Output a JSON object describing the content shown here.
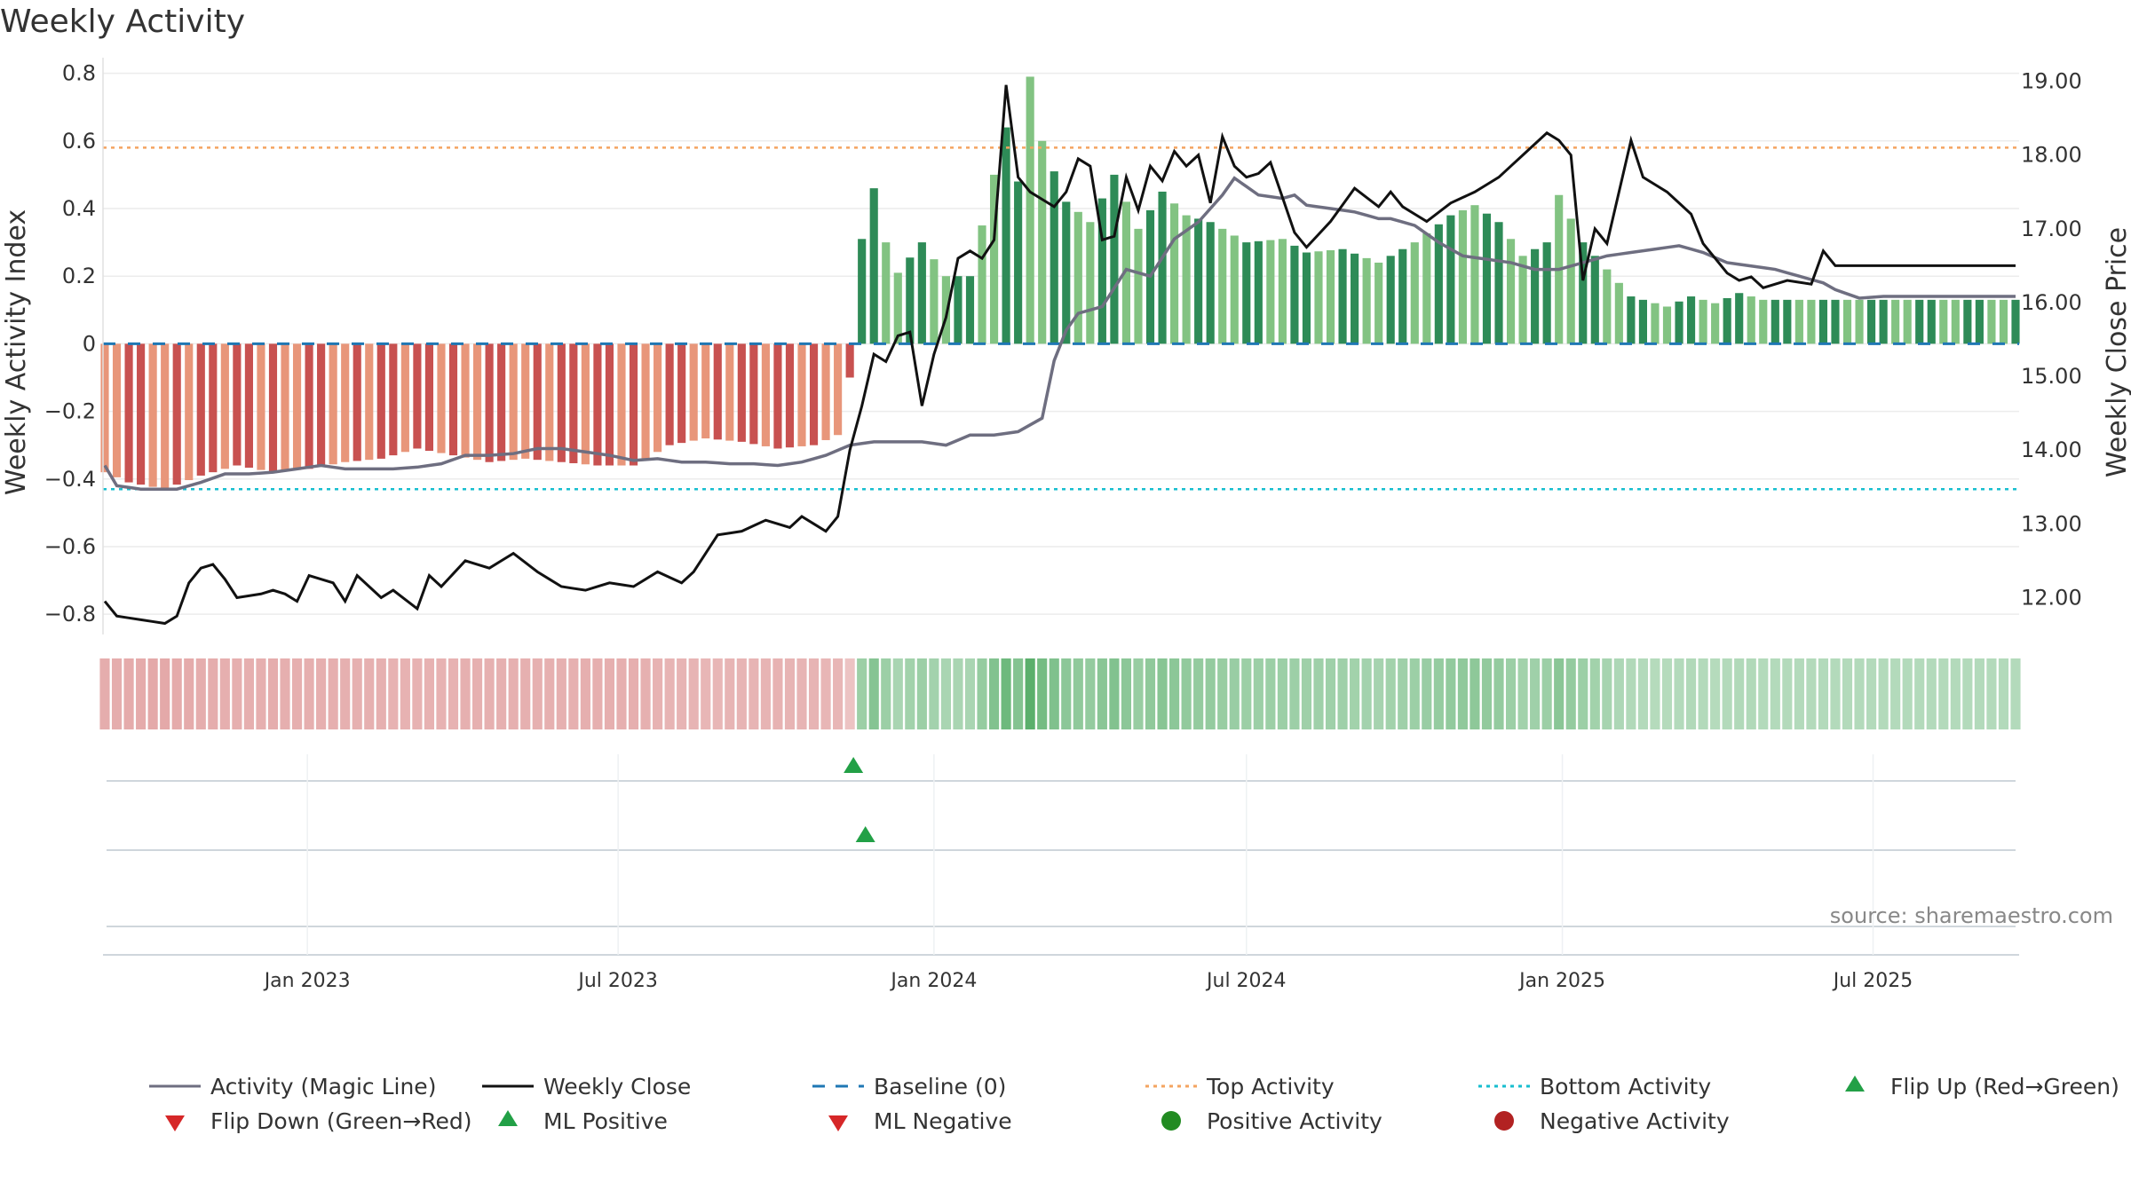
{
  "title": "Weekly Activity",
  "source_text": "source: sharemaestro.com",
  "colors": {
    "neg_dark": "#c85150",
    "neg_light": "#e8967a",
    "pos_dark": "#2e8b57",
    "pos_light": "#82c382",
    "magic_line": "#6e6e80",
    "close_line": "#111111",
    "baseline": "#1f77b4",
    "top_line": "#f4a460",
    "bottom_line": "#17becf",
    "marker_up": "#22a046",
    "marker_down": "#d62728",
    "positive_dot": "#228b22",
    "negative_dot": "#b22222"
  },
  "chart_data": {
    "type": "bar",
    "frequency": "weekly",
    "x_start": "2022-09-05",
    "x_end": "2025-09-22",
    "x_ticks": [
      "Jan 2023",
      "Jul 2023",
      "Jan 2024",
      "Jul 2024",
      "Jan 2025",
      "Jul 2025"
    ],
    "x_tick_dates": [
      "2023-01-01",
      "2023-07-01",
      "2024-01-01",
      "2024-07-01",
      "2025-01-01",
      "2025-07-01"
    ],
    "left_axis": {
      "label": "Weekly Activity Index",
      "range": [
        -0.86,
        0.82
      ],
      "ticks": [
        0.8,
        0.6,
        0.4,
        0.2,
        0,
        -0.2,
        -0.4,
        -0.6,
        -0.8
      ],
      "tick_labels": [
        "0.8",
        "0.6",
        "0.4",
        "0.2",
        "0",
        "−0.2",
        "−0.4",
        "−0.6",
        "−0.8"
      ]
    },
    "right_axis": {
      "label": "Weekly Close Price",
      "range": [
        11.5,
        19.2
      ],
      "ticks": [
        19,
        18,
        17,
        16,
        15,
        14,
        13,
        12
      ],
      "tick_labels": [
        "19.00",
        "18.00",
        "17.00",
        "16.00",
        "15.00",
        "14.00",
        "13.00",
        "12.00"
      ]
    },
    "top_activity": 0.58,
    "bottom_activity": -0.43,
    "baseline": 0,
    "activity_anchors": [
      [
        0,
        -0.38
      ],
      [
        2,
        -0.41
      ],
      [
        5,
        -0.43
      ],
      [
        8,
        -0.39
      ],
      [
        11,
        -0.36
      ],
      [
        14,
        -0.38
      ],
      [
        17,
        -0.37
      ],
      [
        20,
        -0.35
      ],
      [
        23,
        -0.34
      ],
      [
        26,
        -0.31
      ],
      [
        29,
        -0.33
      ],
      [
        32,
        -0.35
      ],
      [
        35,
        -0.34
      ],
      [
        38,
        -0.35
      ],
      [
        41,
        -0.36
      ],
      [
        44,
        -0.36
      ],
      [
        47,
        -0.3
      ],
      [
        50,
        -0.28
      ],
      [
        53,
        -0.29
      ],
      [
        56,
        -0.31
      ],
      [
        59,
        -0.3
      ],
      [
        61,
        -0.27
      ],
      [
        62,
        -0.1
      ],
      [
        63,
        0.31
      ],
      [
        64,
        0.46
      ],
      [
        65,
        0.3
      ],
      [
        66,
        0.21
      ],
      [
        68,
        0.3
      ],
      [
        70,
        0.2
      ],
      [
        72,
        0.2
      ],
      [
        74,
        0.5
      ],
      [
        75,
        0.64
      ],
      [
        76,
        0.48
      ],
      [
        77,
        0.79
      ],
      [
        78,
        0.6
      ],
      [
        80,
        0.42
      ],
      [
        82,
        0.36
      ],
      [
        84,
        0.5
      ],
      [
        86,
        0.34
      ],
      [
        88,
        0.45
      ],
      [
        90,
        0.38
      ],
      [
        92,
        0.36
      ],
      [
        95,
        0.3
      ],
      [
        98,
        0.31
      ],
      [
        100,
        0.27
      ],
      [
        103,
        0.28
      ],
      [
        106,
        0.24
      ],
      [
        109,
        0.3
      ],
      [
        112,
        0.38
      ],
      [
        114,
        0.41
      ],
      [
        116,
        0.36
      ],
      [
        118,
        0.26
      ],
      [
        120,
        0.3
      ],
      [
        121,
        0.44
      ],
      [
        123,
        0.3
      ],
      [
        125,
        0.22
      ],
      [
        127,
        0.14
      ],
      [
        130,
        0.11
      ],
      [
        132,
        0.14
      ],
      [
        134,
        0.12
      ],
      [
        136,
        0.15
      ],
      [
        138,
        0.13
      ]
    ],
    "close_anchors": [
      [
        0,
        11.95
      ],
      [
        1,
        11.75
      ],
      [
        3,
        11.7
      ],
      [
        5,
        11.65
      ],
      [
        6,
        11.75
      ],
      [
        7,
        12.2
      ],
      [
        8,
        12.4
      ],
      [
        9,
        12.45
      ],
      [
        10,
        12.25
      ],
      [
        11,
        12.0
      ],
      [
        13,
        12.05
      ],
      [
        14,
        12.1
      ],
      [
        15,
        12.05
      ],
      [
        16,
        11.95
      ],
      [
        17,
        12.3
      ],
      [
        19,
        12.2
      ],
      [
        20,
        11.95
      ],
      [
        21,
        12.3
      ],
      [
        23,
        12.0
      ],
      [
        24,
        12.1
      ],
      [
        26,
        11.85
      ],
      [
        27,
        12.3
      ],
      [
        28,
        12.15
      ],
      [
        30,
        12.5
      ],
      [
        32,
        12.4
      ],
      [
        34,
        12.6
      ],
      [
        36,
        12.35
      ],
      [
        38,
        12.15
      ],
      [
        40,
        12.1
      ],
      [
        42,
        12.2
      ],
      [
        44,
        12.15
      ],
      [
        46,
        12.35
      ],
      [
        48,
        12.2
      ],
      [
        49,
        12.35
      ],
      [
        51,
        12.85
      ],
      [
        53,
        12.9
      ],
      [
        55,
        13.05
      ],
      [
        57,
        12.95
      ],
      [
        58,
        13.1
      ],
      [
        60,
        12.9
      ],
      [
        61,
        13.1
      ],
      [
        62,
        14.0
      ],
      [
        63,
        14.6
      ],
      [
        64,
        15.3
      ],
      [
        65,
        15.2
      ],
      [
        66,
        15.55
      ],
      [
        67,
        15.6
      ],
      [
        68,
        14.6
      ],
      [
        69,
        15.3
      ],
      [
        70,
        15.8
      ],
      [
        71,
        16.6
      ],
      [
        72,
        16.7
      ],
      [
        73,
        16.6
      ],
      [
        74,
        16.85
      ],
      [
        75,
        18.95
      ],
      [
        76,
        17.7
      ],
      [
        77,
        17.5
      ],
      [
        79,
        17.3
      ],
      [
        80,
        17.5
      ],
      [
        81,
        17.95
      ],
      [
        82,
        17.85
      ],
      [
        83,
        16.85
      ],
      [
        84,
        16.9
      ],
      [
        85,
        17.7
      ],
      [
        86,
        17.25
      ],
      [
        87,
        17.85
      ],
      [
        88,
        17.65
      ],
      [
        89,
        18.05
      ],
      [
        90,
        17.85
      ],
      [
        91,
        18.0
      ],
      [
        92,
        17.35
      ],
      [
        93,
        18.25
      ],
      [
        94,
        17.85
      ],
      [
        95,
        17.7
      ],
      [
        96,
        17.75
      ],
      [
        97,
        17.9
      ],
      [
        99,
        16.95
      ],
      [
        100,
        16.75
      ],
      [
        102,
        17.1
      ],
      [
        104,
        17.55
      ],
      [
        106,
        17.3
      ],
      [
        107,
        17.5
      ],
      [
        108,
        17.3
      ],
      [
        110,
        17.1
      ],
      [
        112,
        17.35
      ],
      [
        114,
        17.5
      ],
      [
        116,
        17.7
      ],
      [
        118,
        18.0
      ],
      [
        120,
        18.3
      ],
      [
        121,
        18.2
      ],
      [
        122,
        18.0
      ],
      [
        123,
        16.3
      ],
      [
        124,
        17.0
      ],
      [
        125,
        16.8
      ],
      [
        126,
        17.5
      ],
      [
        127,
        18.2
      ],
      [
        128,
        17.7
      ],
      [
        130,
        17.5
      ],
      [
        132,
        17.2
      ],
      [
        133,
        16.8
      ],
      [
        135,
        16.4
      ],
      [
        136,
        16.3
      ],
      [
        137,
        16.35
      ],
      [
        138,
        16.2
      ],
      [
        140,
        16.3
      ],
      [
        142,
        16.25
      ],
      [
        143,
        16.7
      ],
      [
        144,
        16.5
      ]
    ],
    "magic_anchors": [
      [
        0,
        -0.36
      ],
      [
        1,
        -0.42
      ],
      [
        3,
        -0.43
      ],
      [
        6,
        -0.43
      ],
      [
        8,
        -0.41
      ],
      [
        10,
        -0.385
      ],
      [
        12,
        -0.385
      ],
      [
        14,
        -0.38
      ],
      [
        16,
        -0.37
      ],
      [
        18,
        -0.36
      ],
      [
        20,
        -0.37
      ],
      [
        22,
        -0.37
      ],
      [
        24,
        -0.37
      ],
      [
        26,
        -0.365
      ],
      [
        28,
        -0.355
      ],
      [
        30,
        -0.33
      ],
      [
        32,
        -0.33
      ],
      [
        34,
        -0.325
      ],
      [
        36,
        -0.31
      ],
      [
        38,
        -0.31
      ],
      [
        40,
        -0.32
      ],
      [
        42,
        -0.33
      ],
      [
        44,
        -0.345
      ],
      [
        46,
        -0.34
      ],
      [
        48,
        -0.35
      ],
      [
        50,
        -0.35
      ],
      [
        52,
        -0.355
      ],
      [
        54,
        -0.355
      ],
      [
        56,
        -0.36
      ],
      [
        58,
        -0.35
      ],
      [
        60,
        -0.33
      ],
      [
        62,
        -0.3
      ],
      [
        64,
        -0.29
      ],
      [
        66,
        -0.29
      ],
      [
        68,
        -0.29
      ],
      [
        70,
        -0.3
      ],
      [
        72,
        -0.27
      ],
      [
        74,
        -0.27
      ],
      [
        76,
        -0.26
      ],
      [
        78,
        -0.22
      ],
      [
        79,
        -0.05
      ],
      [
        80,
        0.04
      ],
      [
        81,
        0.09
      ],
      [
        83,
        0.11
      ],
      [
        85,
        0.22
      ],
      [
        87,
        0.2
      ],
      [
        89,
        0.31
      ],
      [
        91,
        0.36
      ],
      [
        93,
        0.44
      ],
      [
        94,
        0.49
      ],
      [
        96,
        0.44
      ],
      [
        98,
        0.43
      ],
      [
        99,
        0.44
      ],
      [
        100,
        0.41
      ],
      [
        102,
        0.4
      ],
      [
        104,
        0.39
      ],
      [
        106,
        0.37
      ],
      [
        107,
        0.37
      ],
      [
        109,
        0.35
      ],
      [
        111,
        0.3
      ],
      [
        113,
        0.26
      ],
      [
        115,
        0.25
      ],
      [
        117,
        0.24
      ],
      [
        119,
        0.22
      ],
      [
        121,
        0.22
      ],
      [
        123,
        0.24
      ],
      [
        125,
        0.26
      ],
      [
        127,
        0.27
      ],
      [
        129,
        0.28
      ],
      [
        131,
        0.29
      ],
      [
        133,
        0.27
      ],
      [
        135,
        0.24
      ],
      [
        137,
        0.23
      ],
      [
        139,
        0.22
      ],
      [
        141,
        0.2
      ],
      [
        143,
        0.18
      ],
      [
        144,
        0.16
      ],
      [
        146,
        0.135
      ],
      [
        148,
        0.14
      ]
    ],
    "markers": {
      "flip_up": [
        {
          "index": 62,
          "row": 1
        }
      ],
      "ml_positive": [
        {
          "index": 63,
          "row": 2
        }
      ],
      "flip_down": [],
      "ml_negative": [],
      "positive_activity": [],
      "negative_activity": []
    }
  },
  "legend": [
    {
      "label": "Activity (Magic Line)",
      "kind": "line-solid",
      "color": "#6e6e80"
    },
    {
      "label": "Weekly Close",
      "kind": "line-solid",
      "color": "#111111"
    },
    {
      "label": "Baseline (0)",
      "kind": "line-dashed",
      "color": "#1f77b4"
    },
    {
      "label": "Top Activity",
      "kind": "line-dotted",
      "color": "#f4a460"
    },
    {
      "label": "Bottom Activity",
      "kind": "line-dotted",
      "color": "#17becf"
    },
    {
      "label": "Flip Up (Red→Green)",
      "kind": "triangle-up",
      "color": "#22a046"
    },
    {
      "label": "Flip Down (Green→Red)",
      "kind": "triangle-down",
      "color": "#d62728"
    },
    {
      "label": "ML Positive",
      "kind": "triangle-up",
      "color": "#22a046"
    },
    {
      "label": "ML Negative",
      "kind": "triangle-down",
      "color": "#d62728"
    },
    {
      "label": "Positive Activity",
      "kind": "dot",
      "color": "#228b22"
    },
    {
      "label": "Negative Activity",
      "kind": "dot",
      "color": "#b22222"
    }
  ]
}
